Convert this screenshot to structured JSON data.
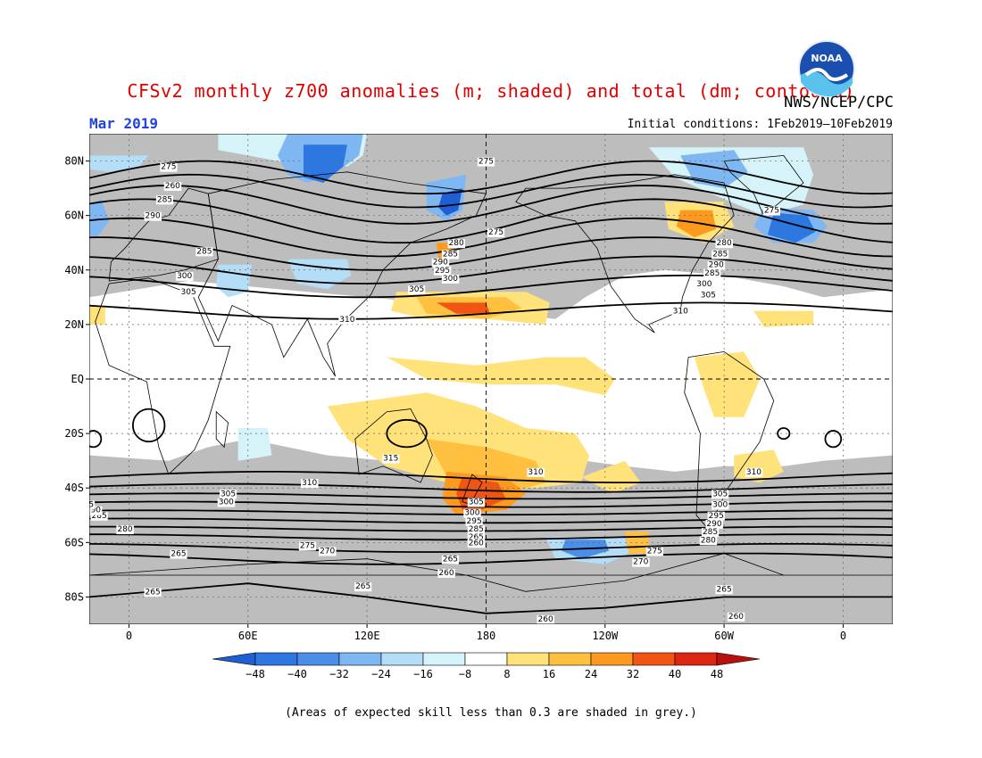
{
  "header": {
    "title": "CFSv2 monthly z700 anomalies (m; shaded) and total (dm; contours)",
    "agency": "NWS/NCEP/CPC",
    "month": "Mar 2019",
    "initial_conditions": "Initial conditions: 1Feb2019–10Feb2019"
  },
  "logo": {
    "text": "NOAA",
    "icon": "noaa-logo-icon"
  },
  "axes": {
    "lat_labels": [
      {
        "lat": 80,
        "text": "80N"
      },
      {
        "lat": 60,
        "text": "60N"
      },
      {
        "lat": 40,
        "text": "40N"
      },
      {
        "lat": 20,
        "text": "20N"
      },
      {
        "lat": 0,
        "text": "EQ"
      },
      {
        "lat": -20,
        "text": "20S"
      },
      {
        "lat": -40,
        "text": "40S"
      },
      {
        "lat": -60,
        "text": "60S"
      },
      {
        "lat": -80,
        "text": "80S"
      }
    ],
    "lon_labels": [
      {
        "lon": 0,
        "text": "0"
      },
      {
        "lon": 60,
        "text": "60E"
      },
      {
        "lon": 120,
        "text": "120E"
      },
      {
        "lon": 180,
        "text": "180"
      },
      {
        "lon": 240,
        "text": "120W"
      },
      {
        "lon": 300,
        "text": "60W"
      },
      {
        "lon": 360,
        "text": "0"
      }
    ],
    "lon_range": [
      -20,
      385
    ],
    "lat_range": [
      -90,
      90
    ]
  },
  "colors": {
    "grey_skill": "#bdbdbd",
    "neg48": "#1e5fd6",
    "neg40": "#2c78e0",
    "neg32": "#4a8ee8",
    "neg24": "#7eb7f2",
    "neg16": "#b4ddf7",
    "neg8": "#d5f3f8",
    "pos8": "#ffe27a",
    "pos16": "#ffc040",
    "pos24": "#fb9a1f",
    "pos32": "#f05514",
    "pos40": "#dc2610",
    "pos48": "#b8100c"
  },
  "colorbar": {
    "ticks": [
      "−48",
      "−40",
      "−32",
      "−24",
      "−16",
      "−8",
      "8",
      "16",
      "24",
      "32",
      "40",
      "48"
    ]
  },
  "contour_labels": [
    {
      "text": "275",
      "lon": 20,
      "lat": 78
    },
    {
      "text": "260",
      "lon": 22,
      "lat": 71
    },
    {
      "text": "285",
      "lon": 18,
      "lat": 66
    },
    {
      "text": "290",
      "lon": 12,
      "lat": 60
    },
    {
      "text": "285",
      "lon": 38,
      "lat": 47
    },
    {
      "text": "300",
      "lon": 28,
      "lat": 38
    },
    {
      "text": "305",
      "lon": 30,
      "lat": 32
    },
    {
      "text": "310",
      "lon": 110,
      "lat": 22
    },
    {
      "text": "305",
      "lon": 145,
      "lat": 33
    },
    {
      "text": "275",
      "lon": 180,
      "lat": 80
    },
    {
      "text": "275",
      "lon": 185,
      "lat": 54
    },
    {
      "text": "280",
      "lon": 165,
      "lat": 50
    },
    {
      "text": "285",
      "lon": 162,
      "lat": 46
    },
    {
      "text": "290",
      "lon": 157,
      "lat": 43
    },
    {
      "text": "295",
      "lon": 158,
      "lat": 40
    },
    {
      "text": "300",
      "lon": 162,
      "lat": 37
    },
    {
      "text": "275",
      "lon": 324,
      "lat": 62
    },
    {
      "text": "280",
      "lon": 300,
      "lat": 50
    },
    {
      "text": "285",
      "lon": 298,
      "lat": 46
    },
    {
      "text": "290",
      "lon": 296,
      "lat": 42
    },
    {
      "text": "285",
      "lon": 294,
      "lat": 39
    },
    {
      "text": "300",
      "lon": 290,
      "lat": 35
    },
    {
      "text": "305",
      "lon": 292,
      "lat": 31
    },
    {
      "text": "310",
      "lon": 278,
      "lat": 25
    },
    {
      "text": "315",
      "lon": 132,
      "lat": -29
    },
    {
      "text": "310",
      "lon": 91,
      "lat": -38
    },
    {
      "text": "310",
      "lon": 205,
      "lat": -34
    },
    {
      "text": "310",
      "lon": 315,
      "lat": -34
    },
    {
      "text": "305",
      "lon": 50,
      "lat": -42
    },
    {
      "text": "300",
      "lon": 49,
      "lat": -45
    },
    {
      "text": "305",
      "lon": 175,
      "lat": -45
    },
    {
      "text": "300",
      "lon": 173,
      "lat": -49
    },
    {
      "text": "295",
      "lon": 174,
      "lat": -52
    },
    {
      "text": "285",
      "lon": 175,
      "lat": -55
    },
    {
      "text": "265",
      "lon": 175,
      "lat": -58
    },
    {
      "text": "260",
      "lon": 175,
      "lat": -60
    },
    {
      "text": "305",
      "lon": 298,
      "lat": -42
    },
    {
      "text": "300",
      "lon": 298,
      "lat": -46
    },
    {
      "text": "295",
      "lon": 296,
      "lat": -50
    },
    {
      "text": "290",
      "lon": 295,
      "lat": -53
    },
    {
      "text": "285",
      "lon": 293,
      "lat": -56
    },
    {
      "text": "280",
      "lon": 292,
      "lat": -59
    },
    {
      "text": "275",
      "lon": 265,
      "lat": -63
    },
    {
      "text": "270",
      "lon": 258,
      "lat": -67
    },
    {
      "text": "265",
      "lon": 162,
      "lat": -66
    },
    {
      "text": "260",
      "lon": 160,
      "lat": -71
    },
    {
      "text": "285",
      "lon": -15,
      "lat": -50
    },
    {
      "text": "290",
      "lon": -18,
      "lat": -48
    },
    {
      "text": "280",
      "lon": -2,
      "lat": -55
    },
    {
      "text": "5",
      "lon": -19,
      "lat": -46
    },
    {
      "text": "275",
      "lon": 90,
      "lat": -61
    },
    {
      "text": "270",
      "lon": 100,
      "lat": -63
    },
    {
      "text": "265",
      "lon": 25,
      "lat": -64
    },
    {
      "text": "265",
      "lon": 12,
      "lat": -78
    },
    {
      "text": "265",
      "lon": 118,
      "lat": -76
    },
    {
      "text": "265",
      "lon": 300,
      "lat": -77
    },
    {
      "text": "260",
      "lon": 210,
      "lat": -88
    },
    {
      "text": "260",
      "lon": 306,
      "lat": -87
    }
  ],
  "footnote": "(Areas of expected skill less than 0.3 are shaded in grey.)"
}
